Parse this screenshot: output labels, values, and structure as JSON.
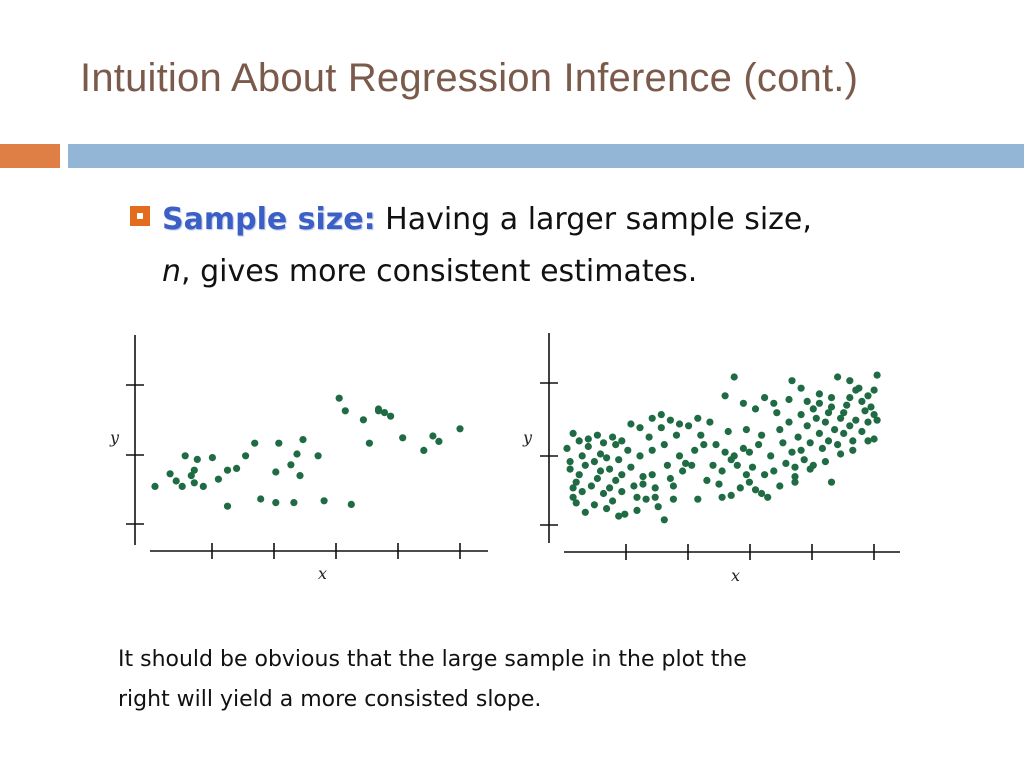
{
  "slide": {
    "title": "Intuition About Regression Inference (cont.)",
    "accent_colors": {
      "title": "#7a5a4a",
      "bar_orange": "#e07f45",
      "bar_blue": "#93b5d6",
      "bullet": "#e36c1e",
      "keyword": "#3b5fc4",
      "dots": "#1f6b43"
    }
  },
  "bullet": {
    "icon": "square-bullet-icon",
    "keyword": "Sample size:",
    "text_line1": " Having a larger sample size,",
    "n": "n",
    "text_line2": ", gives more consistent estimates."
  },
  "caption": {
    "line1": "It should be obvious that the large sample in the plot the",
    "line2": "right will yield a more consisted slope."
  },
  "chart_data": [
    {
      "type": "scatter",
      "xlabel": "x",
      "ylabel": "y",
      "grid": false,
      "xlim": [
        0,
        10
      ],
      "ylim": [
        0,
        10
      ],
      "points": [
        [
          0.1,
          2.7
        ],
        [
          0.6,
          3.4
        ],
        [
          0.8,
          3.0
        ],
        [
          1.0,
          2.7
        ],
        [
          1.1,
          4.4
        ],
        [
          1.3,
          3.3
        ],
        [
          1.4,
          3.6
        ],
        [
          1.5,
          4.2
        ],
        [
          1.4,
          2.9
        ],
        [
          1.7,
          2.7
        ],
        [
          2.0,
          4.3
        ],
        [
          2.2,
          3.1
        ],
        [
          2.5,
          3.6
        ],
        [
          2.5,
          1.6
        ],
        [
          2.8,
          3.7
        ],
        [
          3.1,
          4.4
        ],
        [
          3.4,
          5.1
        ],
        [
          3.6,
          2.0
        ],
        [
          4.2,
          5.1
        ],
        [
          4.1,
          1.8
        ],
        [
          4.1,
          3.5
        ],
        [
          4.6,
          3.9
        ],
        [
          4.7,
          1.8
        ],
        [
          4.8,
          4.5
        ],
        [
          4.9,
          3.3
        ],
        [
          5.0,
          5.3
        ],
        [
          5.5,
          4.4
        ],
        [
          5.7,
          1.9
        ],
        [
          6.2,
          7.6
        ],
        [
          6.4,
          6.9
        ],
        [
          6.6,
          1.7
        ],
        [
          7.0,
          6.4
        ],
        [
          7.2,
          5.1
        ],
        [
          7.5,
          7.0
        ],
        [
          7.5,
          6.9
        ],
        [
          7.7,
          6.8
        ],
        [
          7.9,
          6.6
        ],
        [
          8.3,
          5.4
        ],
        [
          9.0,
          4.7
        ],
        [
          9.3,
          5.5
        ],
        [
          9.5,
          5.2
        ],
        [
          10.2,
          5.9
        ]
      ]
    },
    {
      "type": "scatter",
      "xlabel": "x",
      "ylabel": "y",
      "grid": false,
      "xlim": [
        0,
        10
      ],
      "ylim": [
        0,
        10
      ],
      "points": [
        [
          0.1,
          4.5
        ],
        [
          0.2,
          3.4
        ],
        [
          0.3,
          2.4
        ],
        [
          0.3,
          1.9
        ],
        [
          0.4,
          2.7
        ],
        [
          0.5,
          3.1
        ],
        [
          0.6,
          4.1
        ],
        [
          0.6,
          2.2
        ],
        [
          0.7,
          3.6
        ],
        [
          0.8,
          4.6
        ],
        [
          0.9,
          2.5
        ],
        [
          1.0,
          3.8
        ],
        [
          1.0,
          1.5
        ],
        [
          1.1,
          2.9
        ],
        [
          1.2,
          4.2
        ],
        [
          1.2,
          3.3
        ],
        [
          1.3,
          2.1
        ],
        [
          1.4,
          4.0
        ],
        [
          1.5,
          3.4
        ],
        [
          1.5,
          2.4
        ],
        [
          1.6,
          1.7
        ],
        [
          1.7,
          4.7
        ],
        [
          1.7,
          2.8
        ],
        [
          1.8,
          3.9
        ],
        [
          1.9,
          3.1
        ],
        [
          1.9,
          2.2
        ],
        [
          2.0,
          1.0
        ],
        [
          2.1,
          4.4
        ],
        [
          2.2,
          3.5
        ],
        [
          2.3,
          2.5
        ],
        [
          2.4,
          1.9
        ],
        [
          2.4,
          1.2
        ],
        [
          2.5,
          4.1
        ],
        [
          2.6,
          3.0
        ],
        [
          2.7,
          1.8
        ],
        [
          2.8,
          5.1
        ],
        [
          2.9,
          4.4
        ],
        [
          2.9,
          3.1
        ],
        [
          3.0,
          2.4
        ],
        [
          3.1,
          1.4
        ],
        [
          3.2,
          5.6
        ],
        [
          3.3,
          4.7
        ],
        [
          3.3,
          0.7
        ],
        [
          3.4,
          3.6
        ],
        [
          3.5,
          2.9
        ],
        [
          3.6,
          1.8
        ],
        [
          3.7,
          5.2
        ],
        [
          3.8,
          4.1
        ],
        [
          3.9,
          3.3
        ],
        [
          4.0,
          3.7
        ],
        [
          4.2,
          3.6
        ],
        [
          4.3,
          4.4
        ],
        [
          4.5,
          5.2
        ],
        [
          4.6,
          4.7
        ],
        [
          4.7,
          2.8
        ],
        [
          4.9,
          3.6
        ],
        [
          5.0,
          4.7
        ],
        [
          5.1,
          2.6
        ],
        [
          5.2,
          3.3
        ],
        [
          5.3,
          4.3
        ],
        [
          5.4,
          5.4
        ],
        [
          5.5,
          3.9
        ],
        [
          5.5,
          2.0
        ],
        [
          5.6,
          4.1
        ],
        [
          5.7,
          3.6
        ],
        [
          5.8,
          2.4
        ],
        [
          5.9,
          4.5
        ],
        [
          6.0,
          3.1
        ],
        [
          6.0,
          5.5
        ],
        [
          6.1,
          4.3
        ],
        [
          6.2,
          3.5
        ],
        [
          6.3,
          2.3
        ],
        [
          6.4,
          4.7
        ],
        [
          6.5,
          5.2
        ],
        [
          6.6,
          3.1
        ],
        [
          6.7,
          1.9
        ],
        [
          6.8,
          4.1
        ],
        [
          6.9,
          3.3
        ],
        [
          7.0,
          6.4
        ],
        [
          7.1,
          5.5
        ],
        [
          7.2,
          4.8
        ],
        [
          7.3,
          3.7
        ],
        [
          7.4,
          5.9
        ],
        [
          7.5,
          4.3
        ],
        [
          7.6,
          3.5
        ],
        [
          7.6,
          2.7
        ],
        [
          7.7,
          5.1
        ],
        [
          7.8,
          4.4
        ],
        [
          7.9,
          3.9
        ],
        [
          8.0,
          5.7
        ],
        [
          8.1,
          4.8
        ],
        [
          8.2,
          3.6
        ],
        [
          8.3,
          6.1
        ],
        [
          8.4,
          5.3
        ],
        [
          8.5,
          4.5
        ],
        [
          8.6,
          5.9
        ],
        [
          8.7,
          4.9
        ],
        [
          8.7,
          6.4
        ],
        [
          8.8,
          2.7
        ],
        [
          8.9,
          5.5
        ],
        [
          9.0,
          4.7
        ],
        [
          9.1,
          6.1
        ],
        [
          9.2,
          5.3
        ],
        [
          9.3,
          6.8
        ],
        [
          9.4,
          5.7
        ],
        [
          9.5,
          4.9
        ],
        [
          9.6,
          6.0
        ],
        [
          9.7,
          7.7
        ],
        [
          9.8,
          5.4
        ],
        [
          9.9,
          6.5
        ],
        [
          10.0,
          5.9
        ],
        [
          7.8,
          6.3
        ],
        [
          8.2,
          6.6
        ],
        [
          8.0,
          7.0
        ],
        [
          8.4,
          6.9
        ],
        [
          8.8,
          6.7
        ],
        [
          9.2,
          6.4
        ],
        [
          9.4,
          7.2
        ],
        [
          9.6,
          7.6
        ],
        [
          9.8,
          7.0
        ],
        [
          10.0,
          7.3
        ],
        [
          10.1,
          6.7
        ],
        [
          10.2,
          7.6
        ],
        [
          10.2,
          6.3
        ],
        [
          9.0,
          8.3
        ],
        [
          9.4,
          8.1
        ],
        [
          10.3,
          8.4
        ],
        [
          10.2,
          5.0
        ],
        [
          8.8,
          7.2
        ],
        [
          8.4,
          7.4
        ],
        [
          7.8,
          7.7
        ],
        [
          7.5,
          8.1
        ],
        [
          7.4,
          7.1
        ],
        [
          6.9,
          6.9
        ],
        [
          6.6,
          7.2
        ],
        [
          6.3,
          6.6
        ],
        [
          5.9,
          6.9
        ],
        [
          5.6,
          8.3
        ],
        [
          5.3,
          7.3
        ],
        [
          4.8,
          5.9
        ],
        [
          4.4,
          6.1
        ],
        [
          4.1,
          5.7
        ],
        [
          3.8,
          5.8
        ],
        [
          3.5,
          6.0
        ],
        [
          3.2,
          6.3
        ],
        [
          2.9,
          6.1
        ],
        [
          2.5,
          5.6
        ],
        [
          2.2,
          5.8
        ],
        [
          1.9,
          4.9
        ],
        [
          1.6,
          5.1
        ],
        [
          1.3,
          4.8
        ],
        [
          1.1,
          5.2
        ],
        [
          0.8,
          5.0
        ],
        [
          0.5,
          4.9
        ],
        [
          0.3,
          5.3
        ],
        [
          0.2,
          3.8
        ],
        [
          0.4,
          1.6
        ],
        [
          0.7,
          1.1
        ],
        [
          1.4,
          1.3
        ],
        [
          1.8,
          0.9
        ],
        [
          2.6,
          2.6
        ],
        [
          3.0,
          1.9
        ],
        [
          3.6,
          2.5
        ],
        [
          4.4,
          1.8
        ],
        [
          5.2,
          1.9
        ],
        [
          6.1,
          2.7
        ],
        [
          6.5,
          2.1
        ],
        [
          7.1,
          2.5
        ],
        [
          7.6,
          3.0
        ],
        [
          8.1,
          3.4
        ],
        [
          8.6,
          3.8
        ],
        [
          9.1,
          4.2
        ],
        [
          9.5,
          4.4
        ],
        [
          10.0,
          4.9
        ],
        [
          10.3,
          6.0
        ]
      ]
    }
  ]
}
